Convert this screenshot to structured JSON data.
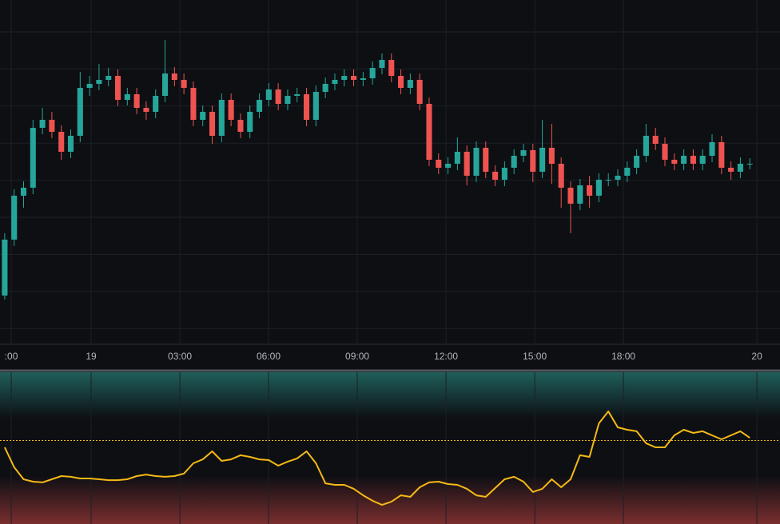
{
  "chart_data": [
    {
      "type": "candlestick",
      "x": [
        0,
        1,
        2,
        3,
        4,
        5,
        6,
        7,
        8,
        9,
        10,
        11,
        12,
        13,
        14,
        15,
        16,
        17,
        18,
        19,
        20,
        21,
        22,
        23,
        24,
        25,
        26,
        27,
        28,
        29,
        30,
        31,
        32,
        33,
        34,
        35,
        36,
        37,
        38,
        39,
        40,
        41,
        42,
        43,
        44,
        45,
        46,
        47,
        48,
        49,
        50,
        51,
        52,
        53,
        54,
        55,
        56,
        57,
        58,
        59,
        60,
        61,
        62,
        63,
        64,
        65,
        66,
        67,
        68,
        69,
        70,
        71,
        72,
        73,
        74,
        75,
        76,
        77,
        78,
        79
      ],
      "open": [
        106.0,
        113.0,
        118.5,
        119.5,
        127.0,
        128.0,
        126.5,
        124.0,
        126.0,
        132.0,
        132.5,
        133.0,
        133.5,
        130.5,
        131.2,
        129.5,
        129.0,
        131.0,
        133.8,
        133.0,
        132.0,
        128.0,
        129.0,
        126.0,
        130.5,
        128.0,
        126.5,
        129.0,
        130.5,
        131.8,
        130.0,
        131.0,
        131.2,
        128.0,
        131.5,
        132.5,
        133.0,
        133.5,
        133.0,
        133.2,
        134.5,
        135.5,
        133.5,
        132.0,
        133.0,
        130.0,
        123.0,
        122.0,
        122.5,
        124.0,
        121.0,
        124.5,
        121.5,
        120.5,
        122.0,
        123.5,
        124.2,
        121.5,
        124.5,
        122.5,
        119.5,
        117.5,
        119.8,
        118.5,
        120.5,
        120.5,
        121.0,
        122.0,
        123.5,
        126.0,
        125.0,
        123.0,
        122.5,
        123.5,
        122.5,
        123.5,
        125.2,
        122.0,
        121.5,
        122.5
      ],
      "high": [
        113.8,
        119.3,
        120.3,
        128.0,
        129.5,
        129.0,
        127.3,
        126.8,
        134.0,
        133.5,
        135.0,
        134.5,
        134.3,
        132.0,
        132.0,
        130.3,
        131.8,
        138.0,
        134.6,
        133.8,
        132.8,
        129.8,
        129.8,
        131.3,
        131.3,
        128.8,
        129.8,
        131.3,
        132.6,
        132.6,
        131.8,
        132.0,
        132.0,
        132.3,
        133.3,
        133.8,
        134.3,
        134.3,
        134.0,
        135.3,
        136.3,
        136.3,
        134.3,
        133.8,
        133.8,
        130.8,
        123.8,
        123.3,
        125.8,
        124.8,
        125.3,
        125.3,
        122.3,
        122.8,
        124.3,
        125.0,
        125.0,
        128.0,
        127.5,
        123.3,
        120.3,
        120.6,
        121.0,
        121.3,
        121.3,
        121.8,
        122.8,
        124.3,
        127.5,
        127.0,
        125.8,
        123.8,
        124.3,
        124.3,
        124.3,
        126.2,
        126.0,
        122.8,
        123.3,
        123.2
      ],
      "low": [
        105.5,
        112.2,
        117.0,
        118.7,
        126.2,
        125.7,
        123.0,
        123.2,
        125.2,
        131.0,
        131.7,
        132.2,
        129.7,
        129.8,
        128.7,
        128.0,
        128.2,
        130.2,
        132.2,
        131.2,
        127.2,
        127.2,
        125.0,
        125.2,
        127.2,
        125.7,
        125.7,
        128.2,
        129.7,
        129.2,
        129.2,
        130.2,
        127.2,
        127.2,
        130.7,
        131.7,
        132.2,
        132.2,
        132.2,
        132.4,
        133.7,
        132.7,
        131.2,
        131.2,
        129.2,
        122.2,
        121.2,
        121.2,
        121.7,
        119.8,
        120.2,
        120.7,
        119.7,
        119.7,
        121.2,
        122.7,
        120.2,
        120.7,
        120.0,
        117.0,
        113.8,
        116.7,
        117.0,
        117.7,
        119.7,
        119.7,
        120.2,
        121.2,
        122.7,
        124.2,
        122.2,
        121.7,
        121.7,
        121.7,
        121.7,
        122.7,
        121.2,
        120.5,
        120.7,
        121.8
      ],
      "close": [
        113.0,
        118.5,
        119.5,
        127.0,
        128.0,
        126.5,
        124.0,
        126.0,
        132.0,
        132.5,
        133.0,
        133.5,
        130.5,
        131.2,
        129.5,
        129.0,
        131.0,
        133.8,
        133.0,
        132.0,
        128.0,
        129.0,
        126.0,
        130.5,
        128.0,
        126.5,
        129.0,
        130.5,
        131.8,
        130.0,
        131.0,
        131.2,
        128.0,
        131.5,
        132.5,
        133.0,
        133.5,
        133.0,
        133.2,
        134.5,
        135.5,
        133.5,
        132.0,
        133.0,
        130.0,
        123.0,
        122.0,
        122.5,
        124.0,
        121.0,
        124.5,
        121.5,
        120.5,
        122.0,
        123.5,
        124.2,
        121.5,
        124.5,
        122.5,
        119.5,
        117.5,
        119.8,
        118.5,
        120.5,
        120.5,
        121.0,
        122.0,
        123.5,
        126.0,
        125.0,
        123.0,
        122.5,
        123.5,
        122.5,
        123.5,
        125.2,
        122.0,
        121.5,
        122.5,
        122.5
      ],
      "up_color": "#26a69a",
      "down_color": "#ef5350",
      "xlim": [
        -0.5,
        82.2
      ],
      "xticks": [
        {
          "value": 0.69,
          "label": ":00"
        },
        {
          "value": 9.16,
          "label": "19"
        },
        {
          "value": 18.57,
          "label": "03:00"
        },
        {
          "value": 27.97,
          "label": "06:00"
        },
        {
          "value": 37.38,
          "label": "09:00"
        },
        {
          "value": 46.79,
          "label": "12:00"
        },
        {
          "value": 56.2,
          "label": "15:00"
        },
        {
          "value": 65.6,
          "label": "18:00"
        },
        {
          "value": 79.75,
          "label": "20"
        }
      ],
      "ylim": [
        100,
        143
      ],
      "grid": true
    },
    {
      "type": "line",
      "x": [
        0,
        1,
        2,
        3,
        4,
        5,
        6,
        7,
        8,
        9,
        10,
        11,
        12,
        13,
        14,
        15,
        16,
        17,
        18,
        19,
        20,
        21,
        22,
        23,
        24,
        25,
        26,
        27,
        28,
        29,
        30,
        31,
        32,
        33,
        34,
        35,
        36,
        37,
        38,
        39,
        40,
        41,
        42,
        43,
        44,
        45,
        46,
        47,
        48,
        49,
        50,
        51,
        52,
        53,
        54,
        55,
        56,
        57,
        58,
        59,
        60,
        61,
        62,
        63,
        64,
        65,
        66,
        67,
        68,
        69,
        70,
        71,
        72,
        73,
        74,
        75,
        76,
        77,
        78,
        79
      ],
      "values": [
        50.5,
        37.4,
        29.5,
        27.9,
        27.4,
        29.5,
        31.6,
        31.1,
        30.0,
        30.0,
        29.5,
        28.9,
        28.9,
        29.5,
        31.6,
        32.6,
        31.6,
        31.1,
        31.6,
        33.2,
        40.0,
        42.6,
        47.9,
        41.6,
        42.6,
        45.3,
        44.2,
        42.6,
        42.1,
        38.4,
        41.1,
        43.2,
        47.9,
        40.0,
        26.8,
        25.8,
        25.8,
        23.2,
        18.9,
        15.3,
        12.6,
        14.7,
        18.9,
        17.9,
        24.2,
        27.4,
        27.9,
        26.3,
        25.8,
        23.2,
        18.9,
        17.9,
        23.7,
        29.5,
        31.1,
        27.9,
        21.1,
        23.2,
        29.5,
        24.2,
        29.5,
        45.3,
        44.2,
        66.3,
        74.2,
        63.7,
        62.1,
        61.1,
        53.2,
        50.5,
        50.5,
        58.4,
        62.1,
        60.0,
        61.1,
        58.4,
        55.8,
        58.4,
        61.1,
        56.8
      ],
      "color": "#f5b915",
      "level": 55,
      "xlim": [
        -0.5,
        82.2
      ],
      "ylim": [
        0,
        100
      ]
    }
  ]
}
